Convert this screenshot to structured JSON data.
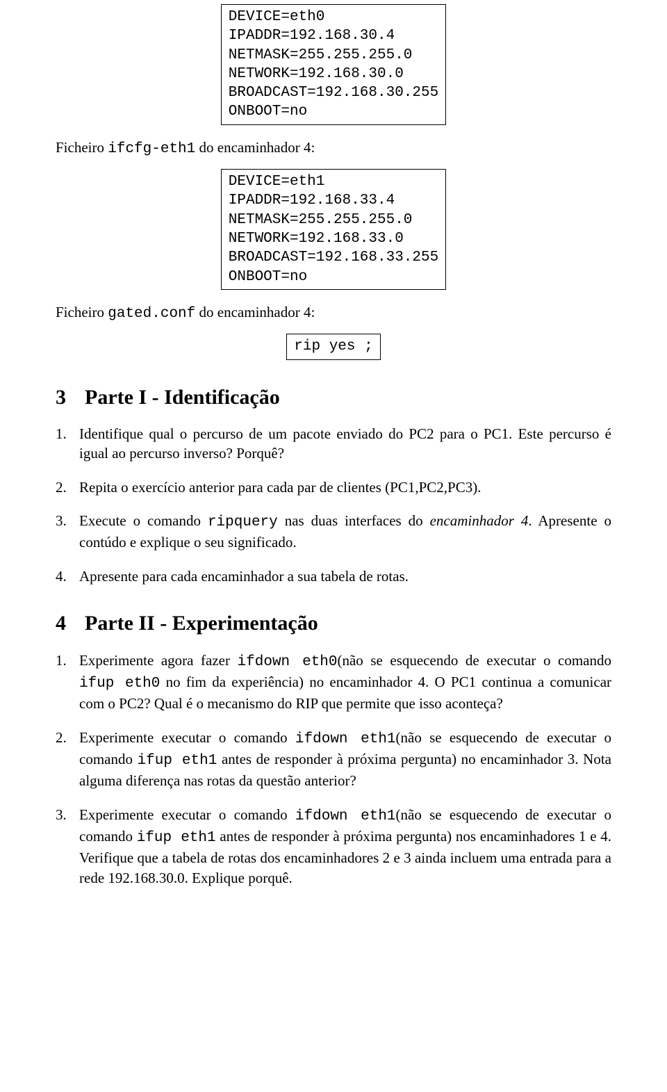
{
  "box1": {
    "lines": [
      "DEVICE=eth0",
      "IPADDR=192.168.30.4",
      "NETMASK=255.255.255.0",
      "NETWORK=192.168.30.0",
      "BROADCAST=192.168.30.255",
      "ONBOOT=no"
    ]
  },
  "para1": {
    "pre": "Ficheiro ",
    "code": "ifcfg-eth1",
    "post": " do encaminhador 4:"
  },
  "box2": {
    "lines": [
      "DEVICE=eth1",
      "IPADDR=192.168.33.4",
      "NETMASK=255.255.255.0",
      "NETWORK=192.168.33.0",
      "BROADCAST=192.168.33.255",
      "ONBOOT=no"
    ]
  },
  "para2": {
    "pre": "Ficheiro ",
    "code": "gated.conf",
    "post": " do encaminhador 4:"
  },
  "box3": {
    "text": "rip yes ;"
  },
  "section3": {
    "num": "3",
    "title": "Parte I - Identificação"
  },
  "s3q1": {
    "num": "1.",
    "text": "Identifique qual o percurso de um pacote enviado do PC2 para o PC1. Este percurso é igual ao percurso inverso? Porquê?"
  },
  "s3q2": {
    "num": "2.",
    "text": "Repita o exercício anterior para cada par de clientes (PC1,PC2,PC3)."
  },
  "s3q3": {
    "num": "3.",
    "pre": "Execute o comando ",
    "code": "ripquery",
    "mid": " nas duas interfaces do ",
    "ital": "encaminhador 4",
    "post": ". Apresente o contúdo e explique o seu significado."
  },
  "s3q4": {
    "num": "4.",
    "text": "Apresente para cada encaminhador a sua tabela de rotas."
  },
  "section4": {
    "num": "4",
    "title": "Parte II - Experimentação"
  },
  "s4q1": {
    "num": "1.",
    "pre": "Experimente agora fazer ",
    "code1": "ifdown eth0",
    "mid1": "(não se esquecendo de executar o comando ",
    "code2": "ifup eth0",
    "post": " no fim da experiência) no encaminhador 4. O PC1 continua a comunicar com o PC2? Qual é o mecanismo do RIP que permite que isso aconteça?"
  },
  "s4q2": {
    "num": "2.",
    "pre": "Experimente executar o comando ",
    "code1": "ifdown eth1",
    "mid1": "(não se esquecendo de executar o comando ",
    "code2": "ifup eth1",
    "post": " antes de responder à próxima pergunta) no encaminhador 3. Nota alguma diferença nas rotas da questão anterior?"
  },
  "s4q3": {
    "num": "3.",
    "pre": "Experimente executar o comando ",
    "code1": "ifdown eth1",
    "mid1": "(não se esquecendo de executar o comando ",
    "code2": "ifup eth1",
    "post": " antes de responder à próxima pergunta) nos encaminhadores 1 e 4. Verifique que a tabela de rotas dos encaminhadores 2 e 3 ainda incluem uma entrada para a rede 192.168.30.0. Explique porquê."
  }
}
